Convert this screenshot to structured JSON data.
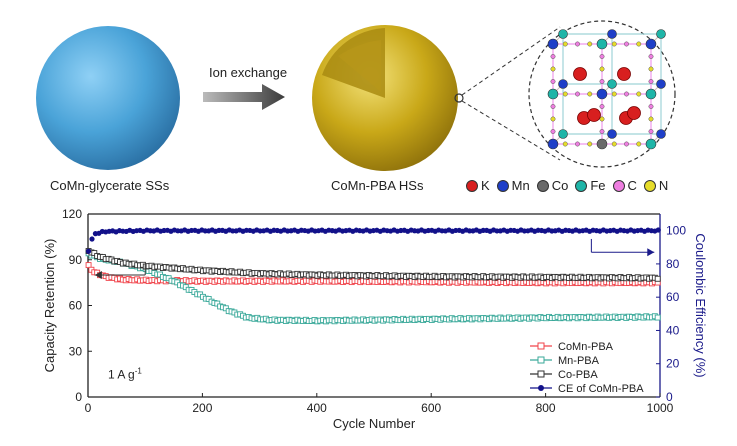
{
  "scheme": {
    "left_sphere_label": "CoMn-glycerate SSs",
    "right_sphere_label": "CoMn-PBA HSs",
    "arrow_label": "Ion exchange",
    "elements": [
      {
        "symbol": "K",
        "color": "#d81f1f"
      },
      {
        "symbol": "Mn",
        "color": "#1f3fc8"
      },
      {
        "symbol": "Co",
        "color": "#6a6a6a"
      },
      {
        "symbol": "Fe",
        "color": "#1fb5a8"
      },
      {
        "symbol": "C",
        "color": "#ee7ee0"
      },
      {
        "symbol": "N",
        "color": "#e6dc2a"
      }
    ],
    "colors": {
      "sphere_blue": "#4aa3d8",
      "shell_gold": "#c9a818"
    }
  },
  "chart_data": {
    "type": "line",
    "xlabel": "Cycle Number",
    "ylabel": "Capacity Retention (%)",
    "y2label": "Coulombic Efficiency (%)",
    "xlim": [
      0,
      1000
    ],
    "ylim": [
      0,
      120
    ],
    "y2lim": [
      0,
      110
    ],
    "xticks": [
      0,
      200,
      400,
      600,
      800,
      1000
    ],
    "yticks": [
      0,
      30,
      60,
      90,
      120
    ],
    "y2ticks": [
      0,
      20,
      40,
      60,
      80,
      100
    ],
    "annotation": "1 A g",
    "annotation_sup": "-1",
    "legend_position": "bottom-right",
    "series": [
      {
        "name": "CoMn-PBA",
        "axis": "left",
        "color": "#f0434a",
        "marker": "open-square",
        "points": [
          [
            1,
            86
          ],
          [
            10,
            82
          ],
          [
            30,
            79
          ],
          [
            60,
            77
          ],
          [
            100,
            76.5
          ],
          [
            200,
            76
          ],
          [
            400,
            76
          ],
          [
            600,
            75.5
          ],
          [
            800,
            75
          ],
          [
            1000,
            75
          ]
        ]
      },
      {
        "name": "Mn-PBA",
        "axis": "left",
        "color": "#3aa99a",
        "marker": "open-square",
        "points": [
          [
            1,
            94
          ],
          [
            20,
            91
          ],
          [
            60,
            88
          ],
          [
            100,
            84
          ],
          [
            150,
            76
          ],
          [
            200,
            66
          ],
          [
            250,
            56
          ],
          [
            280,
            52
          ],
          [
            320,
            50.5
          ],
          [
            400,
            50
          ],
          [
            600,
            51
          ],
          [
            800,
            52
          ],
          [
            1000,
            52.5
          ]
        ]
      },
      {
        "name": "Co-PBA",
        "axis": "left",
        "color": "#333333",
        "marker": "open-square",
        "points": [
          [
            1,
            96
          ],
          [
            20,
            92
          ],
          [
            60,
            88
          ],
          [
            100,
            86
          ],
          [
            200,
            83
          ],
          [
            300,
            81
          ],
          [
            400,
            80
          ],
          [
            600,
            79
          ],
          [
            800,
            78.5
          ],
          [
            1000,
            78
          ]
        ]
      },
      {
        "name": "CE of CoMn-PBA",
        "axis": "right",
        "color": "#12118a",
        "marker": "filled-circle",
        "points": [
          [
            1,
            88
          ],
          [
            10,
            98
          ],
          [
            30,
            99.5
          ],
          [
            100,
            100
          ],
          [
            400,
            100
          ],
          [
            700,
            100
          ],
          [
            1000,
            100
          ]
        ]
      }
    ]
  }
}
